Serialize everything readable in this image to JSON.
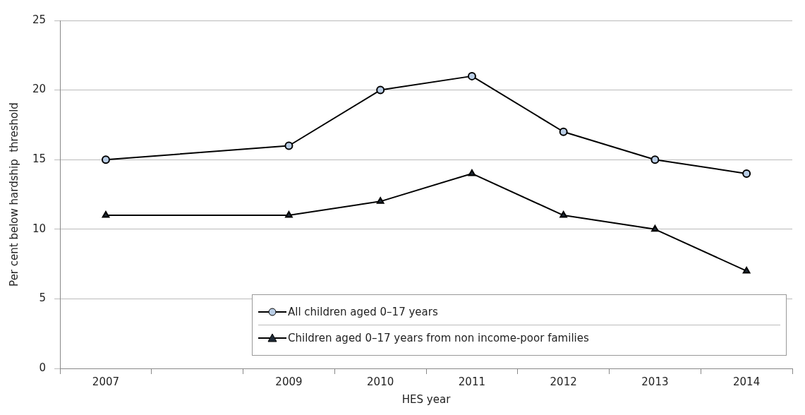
{
  "chart_data": {
    "type": "line",
    "xlabel": "HES year",
    "ylabel": "Per cent below hardship  threshold",
    "categories": [
      "2007",
      null,
      "2009",
      "2010",
      "2011",
      "2012",
      "2013",
      "2014"
    ],
    "ylim": [
      0,
      25
    ],
    "yticks": [
      0,
      5,
      10,
      15,
      20,
      25
    ],
    "grid": "y",
    "legend": "bottom right",
    "line_style": "solid",
    "series": [
      {
        "name": "All children aged 0–17 years",
        "color": "#b9cde5",
        "marker": "circle",
        "values": [
          15,
          null,
          16,
          20,
          21,
          17,
          15,
          14
        ]
      },
      {
        "name": "Children aged 0–17 years from non income-poor families",
        "color": "#1f2a36",
        "marker": "triangle",
        "values": [
          11,
          null,
          11,
          12,
          14,
          11,
          10,
          7
        ]
      }
    ]
  }
}
